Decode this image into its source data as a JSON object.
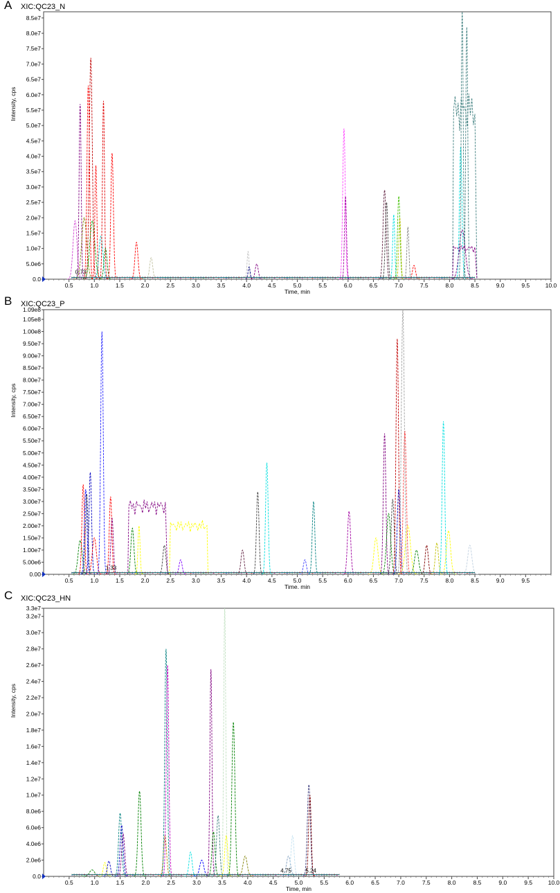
{
  "chart_data": [
    {
      "panel": "A",
      "title": "XIC:QC23_N",
      "type": "line",
      "xlabel": "Time, min",
      "ylabel": "Intensity, cps",
      "xlim": [
        0,
        10.0
      ],
      "ylim": [
        0,
        87000000.0
      ],
      "x_ticks": [
        "0.5",
        "1.0",
        "1.5",
        "2.0",
        "2.5",
        "3.0",
        "3.5",
        "4.0",
        "4.5",
        "5.0",
        "5.5",
        "6.0",
        "6.5",
        "7.0",
        "7.5",
        "8.0",
        "8.5",
        "9.0",
        "9.5",
        "10.0"
      ],
      "y_ticks": [
        {
          "v": 0,
          "label": "0.0"
        },
        {
          "v": 5000000.0,
          "label": "5.0e6"
        },
        {
          "v": 10000000.0,
          "label": "1.0e7"
        },
        {
          "v": 15000000.0,
          "label": "1.5e7"
        },
        {
          "v": 20000000.0,
          "label": "2.0e7"
        },
        {
          "v": 25000000.0,
          "label": "2.5e7"
        },
        {
          "v": 30000000.0,
          "label": "3.0e7"
        },
        {
          "v": 35000000.0,
          "label": "3.5e7"
        },
        {
          "v": 40000000.0,
          "label": "4.0e7"
        },
        {
          "v": 45000000.0,
          "label": "4.5e7"
        },
        {
          "v": 50000000.0,
          "label": "5.0e7"
        },
        {
          "v": 55000000.0,
          "label": "5.5e7"
        },
        {
          "v": 60000000.0,
          "label": "6.0e7"
        },
        {
          "v": 65000000.0,
          "label": "6.5e7"
        },
        {
          "v": 70000000.0,
          "label": "7.0e7"
        },
        {
          "v": 75000000.0,
          "label": "7.5e7"
        },
        {
          "v": 80000000.0,
          "label": "8.0e7"
        },
        {
          "v": 85000000.0,
          "label": "8.5e7"
        }
      ],
      "annotations": [
        {
          "x": 0.73,
          "y": 1500000.0,
          "text": "0.73"
        }
      ],
      "peaks": [
        {
          "x": 0.62,
          "h": 19000000.0,
          "w": 0.04,
          "color": "#d040d0"
        },
        {
          "x": 0.72,
          "h": 57000000.0,
          "w": 0.02,
          "color": "#800080"
        },
        {
          "x": 0.8,
          "h": 20000000.0,
          "w": 0.05,
          "color": "#808000"
        },
        {
          "x": 0.88,
          "h": 63000000.0,
          "w": 0.025,
          "color": "#ff0000"
        },
        {
          "x": 0.93,
          "h": 72000000.0,
          "w": 0.03,
          "color": "#c00000"
        },
        {
          "x": 0.96,
          "h": 19000000.0,
          "w": 0.05,
          "color": "#00a000"
        },
        {
          "x": 1.03,
          "h": 37000000.0,
          "w": 0.02,
          "color": "#ff0000"
        },
        {
          "x": 1.13,
          "h": 14000000.0,
          "w": 0.04,
          "color": "#00c0c0"
        },
        {
          "x": 1.18,
          "h": 58000000.0,
          "w": 0.02,
          "color": "#e00000"
        },
        {
          "x": 1.22,
          "h": 10000000.0,
          "w": 0.03,
          "color": "#008000"
        },
        {
          "x": 1.35,
          "h": 41000000.0,
          "w": 0.025,
          "color": "#ff0000"
        },
        {
          "x": 1.83,
          "h": 12000000.0,
          "w": 0.03,
          "color": "#ff0000"
        },
        {
          "x": 2.12,
          "h": 7000000.0,
          "w": 0.03,
          "color": "#c0c0a0"
        },
        {
          "x": 4.03,
          "h": 9000000.0,
          "w": 0.02,
          "color": "#c0c0c0"
        },
        {
          "x": 4.05,
          "h": 4000000.0,
          "w": 0.02,
          "color": "#000080"
        },
        {
          "x": 4.2,
          "h": 5000000.0,
          "w": 0.03,
          "color": "#800080"
        },
        {
          "x": 5.92,
          "h": 49000000.0,
          "w": 0.025,
          "color": "#ff40ff"
        },
        {
          "x": 5.95,
          "h": 27000000.0,
          "w": 0.02,
          "color": "#a000a0"
        },
        {
          "x": 6.72,
          "h": 29000000.0,
          "w": 0.03,
          "color": "#602040"
        },
        {
          "x": 6.76,
          "h": 25000000.0,
          "w": 0.025,
          "color": "#404040"
        },
        {
          "x": 6.9,
          "h": 21000000.0,
          "w": 0.02,
          "color": "#00e0e0"
        },
        {
          "x": 7.0,
          "h": 27000000.0,
          "w": 0.025,
          "color": "#40c000"
        },
        {
          "x": 7.02,
          "h": 20000000.0,
          "w": 0.02,
          "color": "#c0c000"
        },
        {
          "x": 7.18,
          "h": 17000000.0,
          "w": 0.02,
          "color": "#808080"
        },
        {
          "x": 7.3,
          "h": 4500000.0,
          "w": 0.03,
          "color": "#ff0000"
        },
        {
          "x": 8.22,
          "h": 43000000.0,
          "w": 0.025,
          "color": "#00e0e0"
        },
        {
          "x": 8.25,
          "h": 16000000.0,
          "w": 0.06,
          "color": "#800080"
        }
      ],
      "plateaus": [
        {
          "x0": 8.08,
          "x1": 8.52,
          "level": 55000000.0,
          "color": "#408080"
        },
        {
          "x0": 8.08,
          "x1": 8.52,
          "level": 10000000.0,
          "color": "#800080"
        }
      ],
      "spikes": [
        {
          "x": 8.25,
          "h": 87000000.0,
          "w": 0.02,
          "color": "#408080"
        },
        {
          "x": 8.34,
          "h": 82000000.0,
          "w": 0.02,
          "color": "#408080"
        }
      ]
    },
    {
      "panel": "B",
      "title": "XIC:QC23_P",
      "type": "line",
      "xlabel": "Time, min",
      "ylabel": "Intensity, cps",
      "xlim": [
        0,
        10.0
      ],
      "ylim": [
        0,
        109000000.0
      ],
      "x_ticks": [
        "0.5",
        "1.0",
        "1.5",
        "2.0",
        "2.5",
        "3.0",
        "3.5",
        "4.0",
        "4.5",
        "5.0",
        "5.5",
        "6.0",
        "6.5",
        "7.0",
        "7.5",
        "8.0",
        "8.5",
        "9.0",
        "9.5"
      ],
      "y_ticks": [
        {
          "v": 0,
          "label": "0.00"
        },
        {
          "v": 5000000.0,
          "label": "5.00e6"
        },
        {
          "v": 10000000.0,
          "label": "1.00e7"
        },
        {
          "v": 15000000.0,
          "label": "1.50e7"
        },
        {
          "v": 20000000.0,
          "label": "2.00e7"
        },
        {
          "v": 25000000.0,
          "label": "2.50e7"
        },
        {
          "v": 30000000.0,
          "label": "3.00e7"
        },
        {
          "v": 35000000.0,
          "label": "3.50e7"
        },
        {
          "v": 40000000.0,
          "label": "4.00e7"
        },
        {
          "v": 45000000.0,
          "label": "4.50e7"
        },
        {
          "v": 50000000.0,
          "label": "5.00e7"
        },
        {
          "v": 55000000.0,
          "label": "5.50e7"
        },
        {
          "v": 60000000.0,
          "label": "6.00e7"
        },
        {
          "v": 65000000.0,
          "label": "6.50e7"
        },
        {
          "v": 70000000.0,
          "label": "7.00e7"
        },
        {
          "v": 75000000.0,
          "label": "7.50e7"
        },
        {
          "v": 80000000.0,
          "label": "8.00e7"
        },
        {
          "v": 85000000.0,
          "label": "8.50e7"
        },
        {
          "v": 90000000.0,
          "label": "9.00e7"
        },
        {
          "v": 95000000.0,
          "label": "9.50e7"
        },
        {
          "v": 100000000.0,
          "label": "1.00e8"
        },
        {
          "v": 105000000.0,
          "label": "1.05e8"
        },
        {
          "v": 109000000.0,
          "label": "1.09e8"
        }
      ],
      "annotations": [
        {
          "x": 1.33,
          "y": 1500000.0,
          "text": "1.33"
        }
      ],
      "peaks": [
        {
          "x": 0.72,
          "h": 14000000.0,
          "w": 0.04,
          "color": "#008000"
        },
        {
          "x": 0.78,
          "h": 37000000.0,
          "w": 0.025,
          "color": "#ff0000"
        },
        {
          "x": 0.83,
          "h": 35000000.0,
          "w": 0.025,
          "color": "#0000ff"
        },
        {
          "x": 0.85,
          "h": 33000000.0,
          "w": 0.025,
          "color": "#404040"
        },
        {
          "x": 0.92,
          "h": 42000000.0,
          "w": 0.025,
          "color": "#0000c0"
        },
        {
          "x": 1.0,
          "h": 15000000.0,
          "w": 0.04,
          "color": "#ff0000"
        },
        {
          "x": 1.15,
          "h": 100000000.0,
          "w": 0.025,
          "color": "#2020ff"
        },
        {
          "x": 1.32,
          "h": 32000000.0,
          "w": 0.025,
          "color": "#ff0000"
        },
        {
          "x": 1.35,
          "h": 23000000.0,
          "w": 0.025,
          "color": "#800080"
        },
        {
          "x": 1.75,
          "h": 19000000.0,
          "w": 0.03,
          "color": "#008000"
        },
        {
          "x": 1.88,
          "h": 20000000.0,
          "w": 0.02,
          "color": "#ffff00"
        },
        {
          "x": 2.38,
          "h": 12000000.0,
          "w": 0.03,
          "color": "#404040"
        },
        {
          "x": 2.7,
          "h": 6000000.0,
          "w": 0.03,
          "color": "#8000ff"
        },
        {
          "x": 3.92,
          "h": 10000000.0,
          "w": 0.03,
          "color": "#602040"
        },
        {
          "x": 4.22,
          "h": 34000000.0,
          "w": 0.025,
          "color": "#404040"
        },
        {
          "x": 4.4,
          "h": 46000000.0,
          "w": 0.025,
          "color": "#00e0e0"
        },
        {
          "x": 5.15,
          "h": 6000000.0,
          "w": 0.03,
          "color": "#4040ff"
        },
        {
          "x": 5.32,
          "h": 30000000.0,
          "w": 0.025,
          "color": "#008080"
        },
        {
          "x": 6.02,
          "h": 26000000.0,
          "w": 0.03,
          "color": "#a000a0"
        },
        {
          "x": 6.55,
          "h": 15000000.0,
          "w": 0.04,
          "color": "#ffff00"
        },
        {
          "x": 6.72,
          "h": 58000000.0,
          "w": 0.025,
          "color": "#800080"
        },
        {
          "x": 6.8,
          "h": 25000000.0,
          "w": 0.04,
          "color": "#008000"
        },
        {
          "x": 6.88,
          "h": 31000000.0,
          "w": 0.03,
          "color": "#404040"
        },
        {
          "x": 6.97,
          "h": 97000000.0,
          "w": 0.025,
          "color": "#c00000"
        },
        {
          "x": 7.0,
          "h": 35000000.0,
          "w": 0.03,
          "color": "#0000c0"
        },
        {
          "x": 7.08,
          "h": 109000000.0,
          "w": 0.03,
          "color": "#a0a0a0"
        },
        {
          "x": 7.12,
          "h": 59000000.0,
          "w": 0.03,
          "color": "#ff4040"
        },
        {
          "x": 7.18,
          "h": 20000000.0,
          "w": 0.05,
          "color": "#ffff00"
        },
        {
          "x": 7.35,
          "h": 10000000.0,
          "w": 0.04,
          "color": "#008000"
        },
        {
          "x": 7.55,
          "h": 12000000.0,
          "w": 0.03,
          "color": "#800000"
        },
        {
          "x": 7.75,
          "h": 13000000.0,
          "w": 0.03,
          "color": "#c0c000"
        },
        {
          "x": 7.88,
          "h": 63000000.0,
          "w": 0.025,
          "color": "#00e0e0"
        },
        {
          "x": 7.98,
          "h": 18000000.0,
          "w": 0.04,
          "color": "#ffff00"
        },
        {
          "x": 8.4,
          "h": 12000000.0,
          "w": 0.04,
          "color": "#c0d0e0"
        }
      ],
      "plateaus": [
        {
          "x0": 1.68,
          "x1": 2.42,
          "level": 28000000.0,
          "color": "#800080"
        },
        {
          "x0": 2.5,
          "x1": 3.22,
          "level": 20000000.0,
          "color": "#ffff00"
        }
      ],
      "spikes": []
    },
    {
      "panel": "C",
      "title": "XIC:QC23_HN",
      "type": "line",
      "xlabel": "Time, min",
      "ylabel": "Intensity, cps",
      "xlim": [
        0,
        10.0
      ],
      "ylim": [
        0,
        33000000.0
      ],
      "x_ticks": [
        "0.5",
        "1.0",
        "1.5",
        "2.0",
        "2.5",
        "3.0",
        "3.5",
        "4.0",
        "4.5",
        "5.0",
        "5.5",
        "6.0",
        "6.5",
        "7.0",
        "7.5",
        "8.0",
        "8.5",
        "9.0",
        "9.5",
        "10.0"
      ],
      "y_ticks": [
        {
          "v": 0,
          "label": "0.0"
        },
        {
          "v": 2000000.0,
          "label": "2.0e6"
        },
        {
          "v": 4000000.0,
          "label": "4.0e6"
        },
        {
          "v": 6000000.0,
          "label": "6.0e6"
        },
        {
          "v": 8000000.0,
          "label": "8.0e6"
        },
        {
          "v": 10000000.0,
          "label": "1.0e7"
        },
        {
          "v": 12000000.0,
          "label": "1.2e7"
        },
        {
          "v": 14000000.0,
          "label": "1.4e7"
        },
        {
          "v": 16000000.0,
          "label": "1.6e7"
        },
        {
          "v": 18000000.0,
          "label": "1.8e7"
        },
        {
          "v": 20000000.0,
          "label": "2.0e7"
        },
        {
          "v": 22000000.0,
          "label": "2.2e7"
        },
        {
          "v": 24000000.0,
          "label": "2.4e7"
        },
        {
          "v": 26000000.0,
          "label": "2.6e7"
        },
        {
          "v": 28000000.0,
          "label": "2.8e7"
        },
        {
          "v": 30000000.0,
          "label": "3.0e7"
        },
        {
          "v": 32000000.0,
          "label": "3.2e7"
        },
        {
          "v": 33000000.0,
          "label": "3.3e7"
        }
      ],
      "annotations": [
        {
          "x": 4.75,
          "y": 400000.0,
          "text": "4.75"
        },
        {
          "x": 5.24,
          "y": 400000.0,
          "text": "5.24"
        }
      ],
      "peaks": [
        {
          "x": 0.95,
          "h": 800000.0,
          "w": 0.05,
          "color": "#008000"
        },
        {
          "x": 1.2,
          "h": 1700000.0,
          "w": 0.03,
          "color": "#ffff00"
        },
        {
          "x": 1.28,
          "h": 1900000.0,
          "w": 0.03,
          "color": "#0000c0"
        },
        {
          "x": 1.5,
          "h": 7800000.0,
          "w": 0.03,
          "color": "#008080"
        },
        {
          "x": 1.53,
          "h": 6300000.0,
          "w": 0.03,
          "color": "#0000c0"
        },
        {
          "x": 1.56,
          "h": 5200000.0,
          "w": 0.03,
          "color": "#800080"
        },
        {
          "x": 1.88,
          "h": 10500000.0,
          "w": 0.03,
          "color": "#008000"
        },
        {
          "x": 2.38,
          "h": 5000000.0,
          "w": 0.03,
          "color": "#c08000"
        },
        {
          "x": 2.4,
          "h": 28000000.0,
          "w": 0.025,
          "color": "#008080"
        },
        {
          "x": 2.43,
          "h": 26000000.0,
          "w": 0.025,
          "color": "#c000c0"
        },
        {
          "x": 2.88,
          "h": 3000000.0,
          "w": 0.03,
          "color": "#00e0e0"
        },
        {
          "x": 3.1,
          "h": 2000000.0,
          "w": 0.04,
          "color": "#0000ff"
        },
        {
          "x": 3.28,
          "h": 25500000.0,
          "w": 0.02,
          "color": "#800080"
        },
        {
          "x": 3.33,
          "h": 5500000.0,
          "w": 0.03,
          "color": "#008000"
        },
        {
          "x": 3.42,
          "h": 7500000.0,
          "w": 0.03,
          "color": "#408080"
        },
        {
          "x": 3.55,
          "h": 33000000.0,
          "w": 0.02,
          "color": "#c0e0c0"
        },
        {
          "x": 3.58,
          "h": 5000000.0,
          "w": 0.03,
          "color": "#ffff00"
        },
        {
          "x": 3.72,
          "h": 19000000.0,
          "w": 0.03,
          "color": "#008000"
        },
        {
          "x": 3.95,
          "h": 2500000.0,
          "w": 0.04,
          "color": "#808000"
        },
        {
          "x": 4.8,
          "h": 2500000.0,
          "w": 0.04,
          "color": "#80a0c0"
        },
        {
          "x": 4.88,
          "h": 5000000.0,
          "w": 0.03,
          "color": "#c0e0f0"
        },
        {
          "x": 5.2,
          "h": 11300000.0,
          "w": 0.03,
          "color": "#404080"
        },
        {
          "x": 5.22,
          "h": 10000000.0,
          "w": 0.025,
          "color": "#800000"
        }
      ],
      "plateaus": [],
      "spikes": []
    }
  ]
}
